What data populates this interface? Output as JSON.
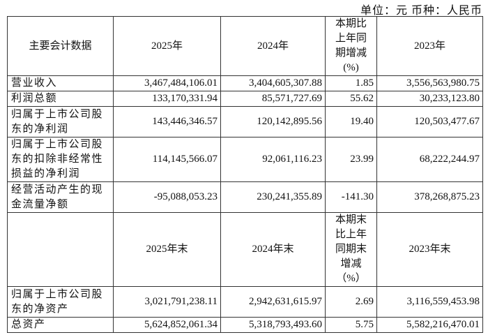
{
  "unit_label": "单位：元 币种：人民币",
  "header1": {
    "label": "主要会计数据",
    "col2025": "2025年",
    "col2024": "2024年",
    "change": [
      "本期比",
      "上年同",
      "期增减",
      "(%)"
    ],
    "col2023": "2023年"
  },
  "rows1": [
    {
      "label": "营业收入",
      "v2025": "3,467,484,106.01",
      "v2024": "3,404,605,307.88",
      "change": "1.85",
      "v2023": "3,556,563,980.75"
    },
    {
      "label": "利润总额",
      "v2025": "133,170,331.94",
      "v2024": "85,571,727.69",
      "change": "55.62",
      "v2023": "30,233,123.80"
    },
    {
      "label": "归属于上市公司股东的净利润",
      "v2025": "143,446,346.57",
      "v2024": "120,142,895.56",
      "change": "19.40",
      "v2023": "120,503,477.67"
    },
    {
      "label": "归属于上市公司股东的扣除非经常性损益的净利润",
      "v2025": "114,145,566.07",
      "v2024": "92,061,116.23",
      "change": "23.99",
      "v2023": "68,222,244.97"
    },
    {
      "label": "经营活动产生的现金流量净额",
      "v2025": "-95,088,053.23",
      "v2024": "230,241,355.89",
      "change": "-141.30",
      "v2023": "378,268,875.23"
    }
  ],
  "header2": {
    "label": "",
    "col2025": "2025年末",
    "col2024": "2024年末",
    "change": [
      "本期末",
      "比上年",
      "同期末",
      "增减",
      "（%）"
    ],
    "col2023": "2023年末"
  },
  "rows2": [
    {
      "label": "归属于上市公司股东的净资产",
      "v2025": "3,021,791,238.11",
      "v2024": "2,942,631,615.97",
      "change": "2.69",
      "v2023": "3,116,559,453.98"
    },
    {
      "label": "总资产",
      "v2025": "5,624,852,061.34",
      "v2024": "5,318,793,493.60",
      "change": "5.75",
      "v2023": "5,582,216,470.01"
    }
  ]
}
